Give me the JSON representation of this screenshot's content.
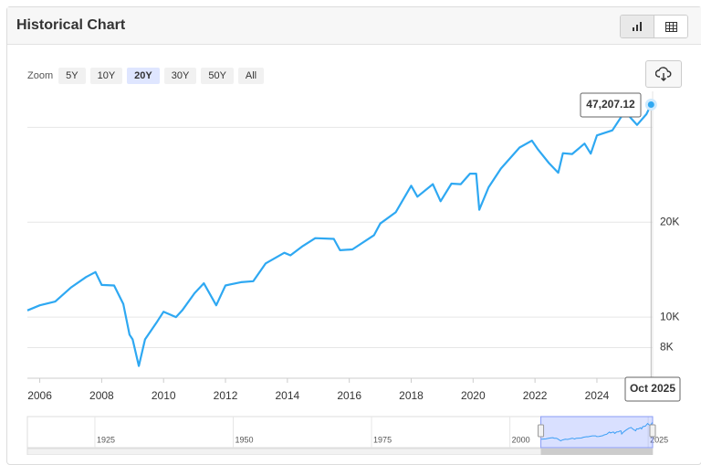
{
  "header": {
    "title": "Historical Chart"
  },
  "zoom": {
    "label": "Zoom",
    "options": [
      "5Y",
      "10Y",
      "20Y",
      "30Y",
      "50Y",
      "All"
    ],
    "active": 2
  },
  "chart_data": {
    "type": "line",
    "color": "#2ea8f2",
    "log_y": true,
    "grid": true,
    "x": [
      2005.6,
      2006.0,
      2006.5,
      2007.0,
      2007.5,
      2007.8,
      2008.0,
      2008.4,
      2008.7,
      2008.9,
      2009.0,
      2009.2,
      2009.4,
      2009.8,
      2010.0,
      2010.4,
      2010.6,
      2011.0,
      2011.3,
      2011.7,
      2012.0,
      2012.5,
      2012.9,
      2013.3,
      2013.9,
      2014.1,
      2014.5,
      2014.9,
      2015.5,
      2015.7,
      2016.1,
      2016.8,
      2017.0,
      2017.5,
      2018.0,
      2018.2,
      2018.7,
      2018.95,
      2019.3,
      2019.6,
      2019.9,
      2020.1,
      2020.2,
      2020.5,
      2020.9,
      2021.5,
      2021.9,
      2022.1,
      2022.45,
      2022.75,
      2022.9,
      2023.2,
      2023.6,
      2023.8,
      2024.0,
      2024.5,
      2024.9,
      2025.3,
      2025.6,
      2025.75
    ],
    "values": [
      10500,
      10900,
      11200,
      12400,
      13400,
      13900,
      12650,
      12600,
      11000,
      8800,
      8500,
      7000,
      8500,
      9700,
      10400,
      10000,
      10500,
      11900,
      12800,
      10900,
      12600,
      12900,
      13000,
      14800,
      16000,
      15700,
      16800,
      17800,
      17700,
      16300,
      16400,
      18200,
      19800,
      21500,
      26100,
      24100,
      26400,
      23300,
      26500,
      26400,
      28500,
      28500,
      21900,
      25800,
      29600,
      34500,
      36300,
      34000,
      30800,
      28700,
      33100,
      32900,
      35500,
      33000,
      37700,
      39100,
      44900,
      40700,
      44000,
      47207.12
    ],
    "xlim": [
      2005.6,
      2025.8
    ],
    "xticks": [
      2006,
      2008,
      2010,
      2012,
      2014,
      2016,
      2018,
      2020,
      2022,
      2024
    ],
    "ylim": [
      6400,
      52000
    ],
    "yticks": [
      {
        "value": 8000,
        "label": "8K"
      },
      {
        "value": 10000,
        "label": "10K"
      },
      {
        "value": 20000,
        "label": "20K"
      },
      {
        "value": 40000,
        "label": null
      }
    ],
    "tooltip": {
      "value": 47207.12,
      "label": "47,207.12",
      "date": "Oct 2025"
    }
  },
  "navigator": {
    "xlim": [
      1912.8,
      2025.8
    ],
    "xticks": [
      1925,
      1950,
      1975,
      2000,
      2025
    ]
  }
}
